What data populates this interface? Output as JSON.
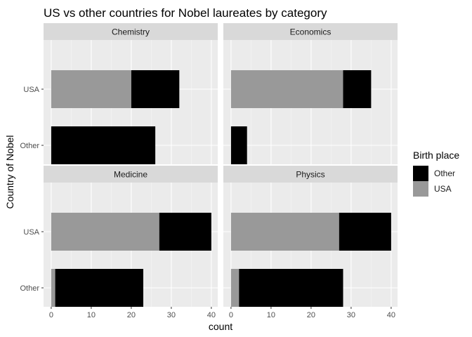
{
  "chart_data": {
    "type": "bar",
    "orientation": "horizontal",
    "stacked": true,
    "faceted": true,
    "title": "US vs other countries for Nobel laureates by category",
    "xlabel": "count",
    "ylabel": "Country of Nobel",
    "xlim": [
      0,
      42
    ],
    "xticks": [
      "0",
      "10",
      "20",
      "30",
      "40"
    ],
    "categories": [
      "USA",
      "Other"
    ],
    "legend": {
      "title": "Birth place",
      "position": "right",
      "entries": [
        {
          "name": "Other",
          "color": "#000000"
        },
        {
          "name": "USA",
          "color": "#999999"
        }
      ]
    },
    "series_colors": {
      "USA": "#999999",
      "Other": "#000000"
    },
    "panels": [
      {
        "name": "Chemistry",
        "bars": [
          {
            "category": "USA",
            "USA": 20,
            "Other": 12
          },
          {
            "category": "Other",
            "USA": 0,
            "Other": 26
          }
        ]
      },
      {
        "name": "Economics",
        "bars": [
          {
            "category": "USA",
            "USA": 28,
            "Other": 7
          },
          {
            "category": "Other",
            "USA": 0,
            "Other": 4
          }
        ]
      },
      {
        "name": "Medicine",
        "bars": [
          {
            "category": "USA",
            "USA": 27,
            "Other": 13
          },
          {
            "category": "Other",
            "USA": 1,
            "Other": 22
          }
        ]
      },
      {
        "name": "Physics",
        "bars": [
          {
            "category": "USA",
            "USA": 27,
            "Other": 13
          },
          {
            "category": "Other",
            "USA": 2,
            "Other": 26
          }
        ]
      }
    ],
    "grid": true
  }
}
